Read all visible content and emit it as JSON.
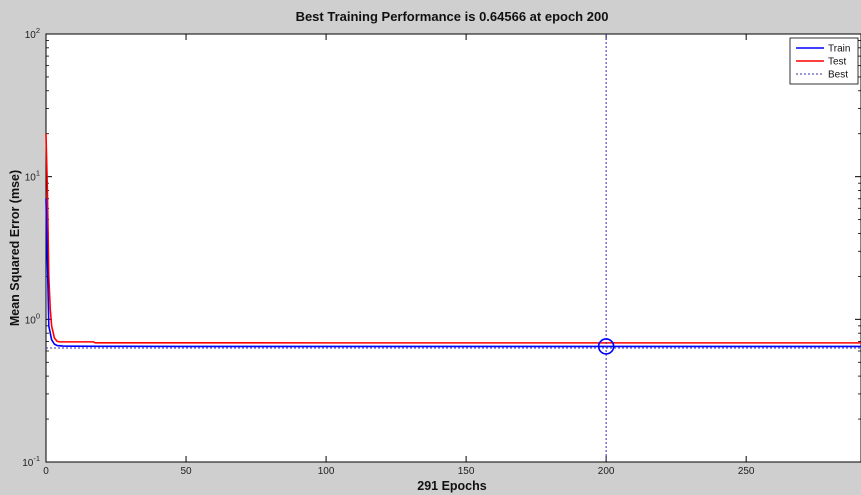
{
  "chart_data": {
    "type": "line",
    "title": "Best Training Performance is 0.64566 at epoch 200",
    "xlabel": "291 Epochs",
    "ylabel": "Mean Squared Error  (mse)",
    "xlim": [
      0,
      291
    ],
    "ylim": [
      0.1,
      100
    ],
    "yscale": "log",
    "x_ticks": [
      0,
      50,
      100,
      150,
      200,
      250
    ],
    "y_ticks": [
      {
        "value": 0.1,
        "base": "10",
        "exp": "-1"
      },
      {
        "value": 1,
        "base": "10",
        "exp": "0"
      },
      {
        "value": 10,
        "base": "10",
        "exp": "1"
      },
      {
        "value": 100,
        "base": "10",
        "exp": "2"
      }
    ],
    "grid": false,
    "legend_position": "top-right",
    "colors": {
      "train": "#0000ff",
      "test": "#ff0000",
      "best": "#3333aa",
      "plot_background": "#ffffff",
      "figure_background": "#cfcfcf"
    },
    "series": [
      {
        "name": "Train",
        "style": "solid",
        "color": "#0000ff",
        "x": [
          0,
          1,
          2,
          3,
          4,
          6,
          10,
          20,
          50,
          100,
          150,
          200,
          250,
          291
        ],
        "y": [
          7.0,
          0.9,
          0.72,
          0.67,
          0.655,
          0.65,
          0.648,
          0.647,
          0.646,
          0.646,
          0.6457,
          0.64566,
          0.6456,
          0.6456
        ]
      },
      {
        "name": "Test",
        "style": "solid",
        "color": "#ff0000",
        "x": [
          0,
          0.5,
          1,
          1.5,
          2,
          3,
          4,
          5,
          17,
          17.5,
          50,
          100,
          150,
          200,
          250,
          291
        ],
        "y": [
          20,
          8,
          2.0,
          1.2,
          0.9,
          0.74,
          0.7,
          0.695,
          0.695,
          0.685,
          0.685,
          0.684,
          0.684,
          0.684,
          0.684,
          0.684
        ]
      },
      {
        "name": "Best",
        "style": "dotted",
        "color": "#3333aa",
        "x": [
          200
        ],
        "y": [
          0.64566
        ]
      }
    ],
    "best_epoch": 200,
    "best_value": 0.64566,
    "goal_line": 0.63
  }
}
